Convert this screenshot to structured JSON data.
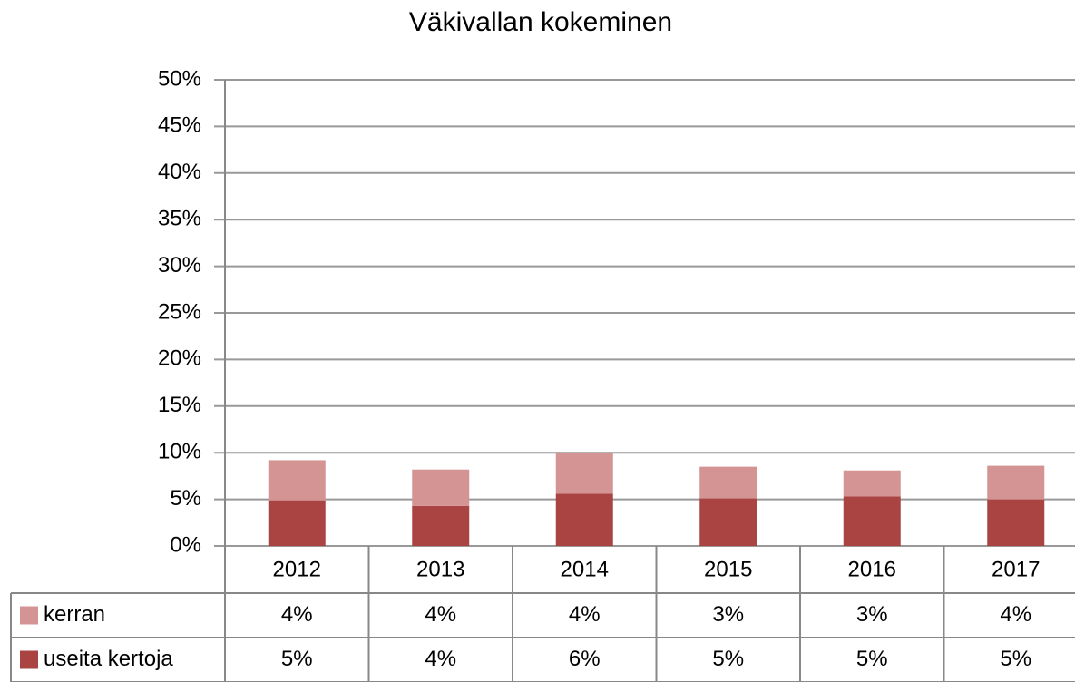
{
  "chart_data": {
    "type": "bar",
    "stacked": true,
    "title": "Väkivallan kokeminen",
    "categories": [
      "2012",
      "2013",
      "2014",
      "2015",
      "2016",
      "2017"
    ],
    "series": [
      {
        "name": "useita kertoja",
        "color": "#a94442",
        "values": [
          4.9,
          4.3,
          5.6,
          5.1,
          5.3,
          5.0
        ],
        "value_labels": [
          "5%",
          "4%",
          "6%",
          "5%",
          "5%",
          "5%"
        ]
      },
      {
        "name": "kerran",
        "color": "#d49494",
        "values": [
          4.3,
          3.9,
          4.4,
          3.4,
          2.8,
          3.6
        ],
        "value_labels": [
          "4%",
          "4%",
          "4%",
          "3%",
          "3%",
          "4%"
        ]
      }
    ],
    "ylim": [
      0,
      50
    ],
    "yticks": [
      {
        "value": 0,
        "label": "0%"
      },
      {
        "value": 5,
        "label": "5%"
      },
      {
        "value": 10,
        "label": "10%"
      },
      {
        "value": 15,
        "label": "15%"
      },
      {
        "value": 20,
        "label": "20%"
      },
      {
        "value": 25,
        "label": "25%"
      },
      {
        "value": 30,
        "label": "30%"
      },
      {
        "value": 35,
        "label": "35%"
      },
      {
        "value": 40,
        "label": "40%"
      },
      {
        "value": 45,
        "label": "45%"
      },
      {
        "value": 50,
        "label": "50%"
      }
    ],
    "grid": true
  }
}
